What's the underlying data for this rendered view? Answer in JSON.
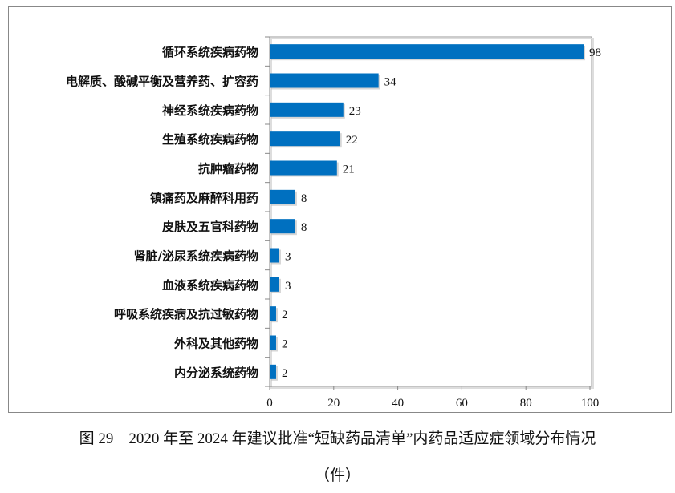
{
  "chart_data": {
    "type": "bar",
    "orientation": "horizontal",
    "categories": [
      "循环系统疾病药物",
      "电解质、酸碱平衡及营养药、扩容药",
      "神经系统疾病药物",
      "生殖系统疾病药物",
      "抗肿瘤药物",
      "镇痛药及麻醉科用药",
      "皮肤及五官科药物",
      "肾脏/泌尿系统疾病药物",
      "血液系统疾病药物",
      "呼吸系统疾病及抗过敏药物",
      "外科及其他药物",
      "内分泌系统药物"
    ],
    "values": [
      98,
      34,
      23,
      22,
      21,
      8,
      8,
      3,
      3,
      2,
      2,
      2
    ],
    "xlim": [
      0,
      100
    ],
    "xticks": [
      "0",
      "20",
      "40",
      "60",
      "80",
      "100"
    ],
    "grid": false,
    "bar_color": "#0070c0",
    "caption": "图 29　2020 年至 2024 年建议批准“短缺药品清单”内药品适应症领域分布情况",
    "unit": "（件）"
  }
}
